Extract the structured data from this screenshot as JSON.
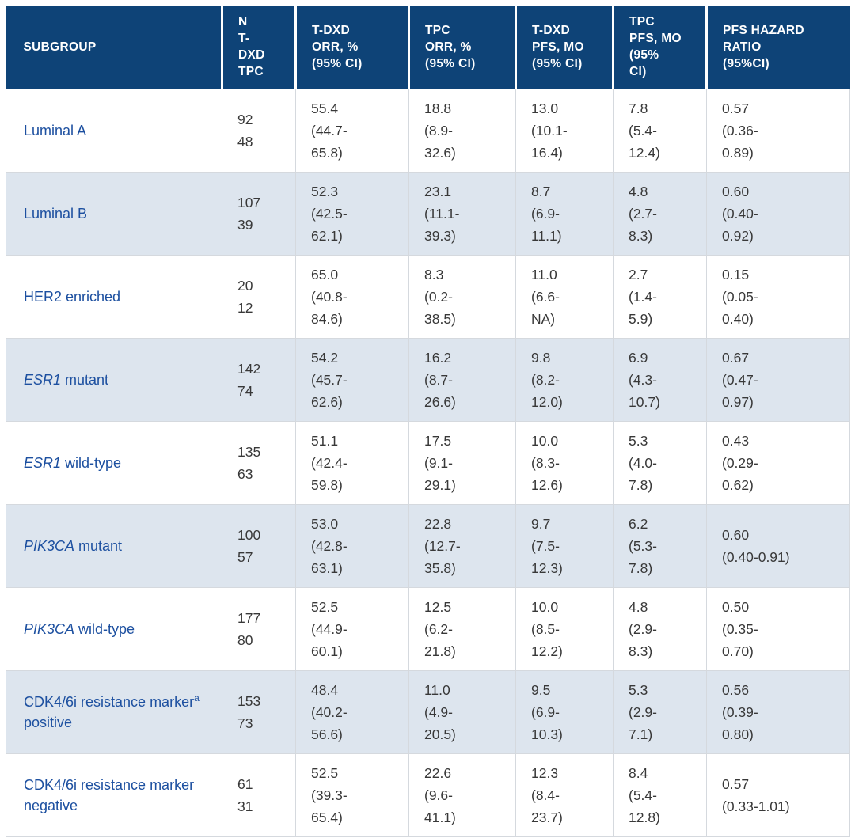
{
  "colors": {
    "header_bg": "#0e4377",
    "header_text": "#ffffff",
    "alt_row_bg": "#dde5ee",
    "subgroup_text": "#1d50a0",
    "body_text": "#383838",
    "grid_line": "#d5d9de"
  },
  "table": {
    "columns": [
      {
        "id": "subgroup",
        "lines": [
          "SUBGROUP"
        ]
      },
      {
        "id": "n",
        "lines": [
          "N",
          "T-",
          "DXD",
          "TPC"
        ]
      },
      {
        "id": "tdxd_orr",
        "lines": [
          "T-DXD",
          "ORR, %",
          "(95% CI)"
        ]
      },
      {
        "id": "tpc_orr",
        "lines": [
          "TPC",
          "ORR, %",
          "(95% CI)"
        ]
      },
      {
        "id": "tdxd_pfs",
        "lines": [
          "T-DXD",
          "PFS, MO",
          "(95% CI)"
        ]
      },
      {
        "id": "tpc_pfs",
        "lines": [
          "TPC",
          "PFS, MO",
          "(95%",
          "CI)"
        ]
      },
      {
        "id": "hr",
        "lines": [
          "PFS HAZARD",
          "RATIO",
          "(95%CI)"
        ]
      }
    ],
    "rows": [
      {
        "subgroup": [
          {
            "text": "Luminal A"
          }
        ],
        "n": [
          "92",
          "48"
        ],
        "tdxd_orr": [
          "55.4",
          "(44.7-",
          "65.8)"
        ],
        "tpc_orr": [
          "18.8",
          "(8.9-",
          "32.6)"
        ],
        "tdxd_pfs": [
          "13.0",
          "(10.1-",
          "16.4)"
        ],
        "tpc_pfs": [
          "7.8",
          "(5.4-",
          "12.4)"
        ],
        "hr": [
          "0.57",
          "(0.36-",
          "0.89)"
        ]
      },
      {
        "subgroup": [
          {
            "text": "Luminal B"
          }
        ],
        "n": [
          "107",
          "39"
        ],
        "tdxd_orr": [
          "52.3",
          "(42.5-",
          "62.1)"
        ],
        "tpc_orr": [
          "23.1",
          "(11.1-",
          "39.3)"
        ],
        "tdxd_pfs": [
          "8.7",
          "(6.9-",
          "11.1)"
        ],
        "tpc_pfs": [
          "4.8",
          "(2.7-",
          "8.3)"
        ],
        "hr": [
          "0.60",
          "(0.40-",
          "0.92)"
        ]
      },
      {
        "subgroup": [
          {
            "text": "HER2 enriched"
          }
        ],
        "n": [
          "20",
          "12"
        ],
        "tdxd_orr": [
          "65.0",
          "(40.8-",
          "84.6)"
        ],
        "tpc_orr": [
          "8.3",
          "(0.2-",
          "38.5)"
        ],
        "tdxd_pfs": [
          "11.0",
          "(6.6-",
          "NA)"
        ],
        "tpc_pfs": [
          "2.7",
          "(1.4-",
          "5.9)"
        ],
        "hr": [
          "0.15",
          "(0.05-",
          "0.40)"
        ]
      },
      {
        "subgroup": [
          {
            "text": "ESR1",
            "italic": true
          },
          {
            "text": " mutant"
          }
        ],
        "n": [
          "142",
          "74"
        ],
        "tdxd_orr": [
          "54.2",
          "(45.7-",
          "62.6)"
        ],
        "tpc_orr": [
          "16.2",
          "(8.7-",
          "26.6)"
        ],
        "tdxd_pfs": [
          "9.8",
          "(8.2-",
          "12.0)"
        ],
        "tpc_pfs": [
          "6.9",
          "(4.3-",
          "10.7)"
        ],
        "hr": [
          "0.67",
          "(0.47-",
          "0.97)"
        ]
      },
      {
        "subgroup": [
          {
            "text": "ESR1",
            "italic": true
          },
          {
            "text": " wild-type"
          }
        ],
        "n": [
          "135",
          "63"
        ],
        "tdxd_orr": [
          "51.1",
          "(42.4-",
          "59.8)"
        ],
        "tpc_orr": [
          "17.5",
          "(9.1-",
          "29.1)"
        ],
        "tdxd_pfs": [
          "10.0",
          "(8.3-",
          "12.6)"
        ],
        "tpc_pfs": [
          "5.3",
          "(4.0-",
          "7.8)"
        ],
        "hr": [
          "0.43",
          "(0.29-",
          "0.62)"
        ]
      },
      {
        "subgroup": [
          {
            "text": "PIK3CA",
            "italic": true
          },
          {
            "text": " mutant"
          }
        ],
        "n": [
          "100",
          "57"
        ],
        "tdxd_orr": [
          "53.0",
          "(42.8-",
          "63.1)"
        ],
        "tpc_orr": [
          "22.8",
          "(12.7-",
          "35.8)"
        ],
        "tdxd_pfs": [
          "9.7",
          "(7.5-",
          "12.3)"
        ],
        "tpc_pfs": [
          "6.2",
          "(5.3-",
          "7.8)"
        ],
        "hr": [
          "0.60",
          "(0.40-0.91)"
        ]
      },
      {
        "subgroup": [
          {
            "text": "PIK3CA",
            "italic": true
          },
          {
            "text": " wild-type"
          }
        ],
        "n": [
          "177",
          "80"
        ],
        "tdxd_orr": [
          "52.5",
          "(44.9-",
          "60.1)"
        ],
        "tpc_orr": [
          "12.5",
          "(6.2-",
          "21.8)"
        ],
        "tdxd_pfs": [
          "10.0",
          "(8.5-",
          "12.2)"
        ],
        "tpc_pfs": [
          "4.8",
          "(2.9-",
          "8.3)"
        ],
        "hr": [
          "0.50",
          "(0.35-",
          "0.70)"
        ]
      },
      {
        "subgroup": [
          {
            "text": "CDK4/6i resistance marker"
          },
          {
            "text": "a",
            "sup": true
          },
          {
            "text": " positive"
          }
        ],
        "n": [
          "153",
          "73"
        ],
        "tdxd_orr": [
          "48.4",
          "(40.2-",
          "56.6)"
        ],
        "tpc_orr": [
          "11.0",
          "(4.9-",
          "20.5)"
        ],
        "tdxd_pfs": [
          "9.5",
          "(6.9-",
          "10.3)"
        ],
        "tpc_pfs": [
          "5.3",
          "(2.9-",
          "7.1)"
        ],
        "hr": [
          "0.56",
          "(0.39-",
          "0.80)"
        ]
      },
      {
        "subgroup": [
          {
            "text": "CDK4/6i resistance marker negative"
          }
        ],
        "n": [
          "61",
          "31"
        ],
        "tdxd_orr": [
          "52.5",
          "(39.3-",
          "65.4)"
        ],
        "tpc_orr": [
          "22.6",
          "(9.6-",
          "41.1)"
        ],
        "tdxd_pfs": [
          "12.3",
          "(8.4-",
          "23.7)"
        ],
        "tpc_pfs": [
          "8.4",
          "(5.4-",
          "12.8)"
        ],
        "hr": [
          "0.57",
          "(0.33-1.01)"
        ]
      }
    ]
  }
}
